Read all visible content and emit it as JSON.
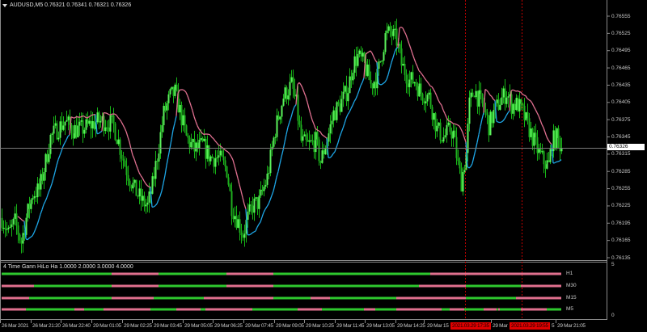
{
  "header": {
    "symbol_title": "AUDUSD,M5  0.76321 0.76341 0.76321 0.76326"
  },
  "price_axis": {
    "labels": [
      "0.76555",
      "0.76525",
      "0.76495",
      "0.76465",
      "0.76435",
      "0.76405",
      "0.76375",
      "0.76345",
      "0.76315",
      "0.76285",
      "0.76255",
      "0.76225",
      "0.76195",
      "0.76165",
      "0.76135"
    ],
    "current_price": "0.76326"
  },
  "time_axis": {
    "labels": [
      "26 Mar 2021",
      "26 Mar 21:20",
      "26 Mar 22:40",
      "29 Mar 01:05",
      "29 Mar 02:25",
      "29 Mar 03:45",
      "29 Mar 05:05",
      "29 Mar 06:25",
      "29 Mar 07:45",
      "29 Mar 09:05",
      "29 Mar 10:25",
      "29 Mar 11:45",
      "29 Mar 13:05",
      "29 Mar 14:25",
      "29 Mar 15",
      "29 Mar",
      "5",
      "29 Mar 21:05"
    ],
    "highlight_labels": [
      "2021.03.29 17:35",
      "2021.03.29 19:55"
    ]
  },
  "indicator": {
    "title": "4 Time Gann HiLo Ha 1.0000 2.0000 3.0000 4.0000",
    "scale_max": "5",
    "scale_min": "0",
    "colors": {
      "up": "#2ec82e",
      "down": "#e0708e"
    },
    "rows": [
      {
        "label": "H1",
        "segments": [
          [
            "up",
            0,
            68
          ],
          [
            "down",
            68,
            97
          ],
          [
            "up",
            97,
            139
          ],
          [
            "down",
            139,
            168
          ],
          [
            "up",
            168,
            265
          ],
          [
            "down",
            265,
            346
          ]
        ]
      },
      {
        "label": "M30",
        "segments": [
          [
            "down",
            0,
            20
          ],
          [
            "up",
            20,
            68
          ],
          [
            "down",
            68,
            97
          ],
          [
            "up",
            97,
            139
          ],
          [
            "down",
            139,
            168
          ],
          [
            "up",
            168,
            258
          ],
          [
            "down",
            258,
            287
          ],
          [
            "up",
            287,
            321
          ],
          [
            "down",
            321,
            346
          ]
        ]
      },
      {
        "label": "M15",
        "segments": [
          [
            "down",
            0,
            17
          ],
          [
            "up",
            17,
            68
          ],
          [
            "down",
            68,
            94
          ],
          [
            "up",
            94,
            125
          ],
          [
            "down",
            125,
            168
          ],
          [
            "up",
            168,
            191
          ],
          [
            "down",
            191,
            203
          ],
          [
            "up",
            203,
            244
          ],
          [
            "down",
            244,
            287
          ],
          [
            "up",
            287,
            318
          ],
          [
            "down",
            318,
            346
          ]
        ]
      },
      {
        "label": "M5",
        "segments": [
          [
            "down",
            0,
            15
          ],
          [
            "up",
            15,
            45
          ],
          [
            "down",
            45,
            51
          ],
          [
            "up",
            51,
            63
          ],
          [
            "down",
            63,
            92
          ],
          [
            "up",
            92,
            108
          ],
          [
            "down",
            108,
            123
          ],
          [
            "up",
            123,
            126
          ],
          [
            "down",
            126,
            155
          ],
          [
            "up",
            155,
            183
          ],
          [
            "down",
            183,
            198
          ],
          [
            "up",
            198,
            224
          ],
          [
            "down",
            224,
            231
          ],
          [
            "up",
            231,
            244
          ],
          [
            "down",
            244,
            272
          ],
          [
            "up",
            272,
            277
          ],
          [
            "down",
            277,
            286
          ],
          [
            "up",
            286,
            298
          ],
          [
            "down",
            298,
            306
          ],
          [
            "up",
            306,
            307
          ],
          [
            "down",
            307,
            308
          ],
          [
            "up",
            308,
            321
          ],
          [
            "down",
            321,
            337
          ],
          [
            "up",
            337,
            346
          ]
        ]
      }
    ]
  },
  "chart_data": {
    "type": "candlestick",
    "symbol": "AUDUSD",
    "timeframe": "M5",
    "ylim": [
      0.76135,
      0.76555
    ],
    "colors": {
      "bull": "#5cf25c",
      "bear": "#1fae1f",
      "gann_up": "#1ea6e6",
      "gann_down": "#e07090",
      "grid_line": "#7a7a7a",
      "marker_line": "#c00000"
    },
    "close_path": [
      [
        0,
        0.76204
      ],
      [
        4,
        0.76176
      ],
      [
        8,
        0.76197
      ],
      [
        12,
        0.76162
      ],
      [
        15,
        0.76204
      ],
      [
        19,
        0.76246
      ],
      [
        23,
        0.76253
      ],
      [
        27,
        0.76302
      ],
      [
        30,
        0.76344
      ],
      [
        34,
        0.76358
      ],
      [
        39,
        0.76372
      ],
      [
        44,
        0.76358
      ],
      [
        49,
        0.76358
      ],
      [
        54,
        0.76365
      ],
      [
        59,
        0.76372
      ],
      [
        64,
        0.76372
      ],
      [
        69,
        0.76365
      ],
      [
        72,
        0.76337
      ],
      [
        74,
        0.76316
      ],
      [
        77,
        0.76288
      ],
      [
        82,
        0.76253
      ],
      [
        87,
        0.76232
      ],
      [
        90,
        0.76225
      ],
      [
        93,
        0.7626
      ],
      [
        97,
        0.7633
      ],
      [
        100,
        0.76386
      ],
      [
        104,
        0.76415
      ],
      [
        107,
        0.76422
      ],
      [
        109,
        0.76401
      ],
      [
        114,
        0.76344
      ],
      [
        119,
        0.76323
      ],
      [
        124,
        0.7633
      ],
      [
        129,
        0.76309
      ],
      [
        134,
        0.76309
      ],
      [
        139,
        0.76288
      ],
      [
        142,
        0.76225
      ],
      [
        145,
        0.76204
      ],
      [
        149,
        0.76176
      ],
      [
        152,
        0.76204
      ],
      [
        155,
        0.76225
      ],
      [
        159,
        0.76232
      ],
      [
        164,
        0.76274
      ],
      [
        169,
        0.76358
      ],
      [
        174,
        0.76415
      ],
      [
        179,
        0.76436
      ],
      [
        182,
        0.76401
      ],
      [
        185,
        0.76337
      ],
      [
        189,
        0.7633
      ],
      [
        194,
        0.76337
      ],
      [
        197,
        0.76302
      ],
      [
        202,
        0.76351
      ],
      [
        205,
        0.76386
      ],
      [
        209,
        0.76401
      ],
      [
        214,
        0.76429
      ],
      [
        217,
        0.76471
      ],
      [
        220,
        0.76485
      ],
      [
        224,
        0.76471
      ],
      [
        228,
        0.76436
      ],
      [
        232,
        0.7645
      ],
      [
        234,
        0.76478
      ],
      [
        237,
        0.7652
      ],
      [
        240,
        0.76527
      ],
      [
        244,
        0.76513
      ],
      [
        247,
        0.76471
      ],
      [
        252,
        0.76443
      ],
      [
        255,
        0.76443
      ],
      [
        259,
        0.76422
      ],
      [
        264,
        0.76415
      ],
      [
        269,
        0.76358
      ],
      [
        273,
        0.76344
      ],
      [
        277,
        0.76358
      ],
      [
        279,
        0.76351
      ],
      [
        282,
        0.76295
      ],
      [
        284,
        0.76267
      ],
      [
        287,
        0.76316
      ],
      [
        289,
        0.76401
      ],
      [
        292,
        0.76429
      ],
      [
        294,
        0.76415
      ],
      [
        298,
        0.76394
      ],
      [
        301,
        0.76365
      ],
      [
        304,
        0.76386
      ],
      [
        308,
        0.76408
      ],
      [
        312,
        0.76422
      ],
      [
        315,
        0.76401
      ],
      [
        319,
        0.76401
      ],
      [
        322,
        0.76386
      ],
      [
        324,
        0.76372
      ],
      [
        328,
        0.76344
      ],
      [
        332,
        0.76316
      ],
      [
        335,
        0.76302
      ],
      [
        338,
        0.76295
      ],
      [
        340,
        0.76337
      ],
      [
        343,
        0.76344
      ],
      [
        346,
        0.76326
      ]
    ],
    "current_price": 0.76326
  }
}
